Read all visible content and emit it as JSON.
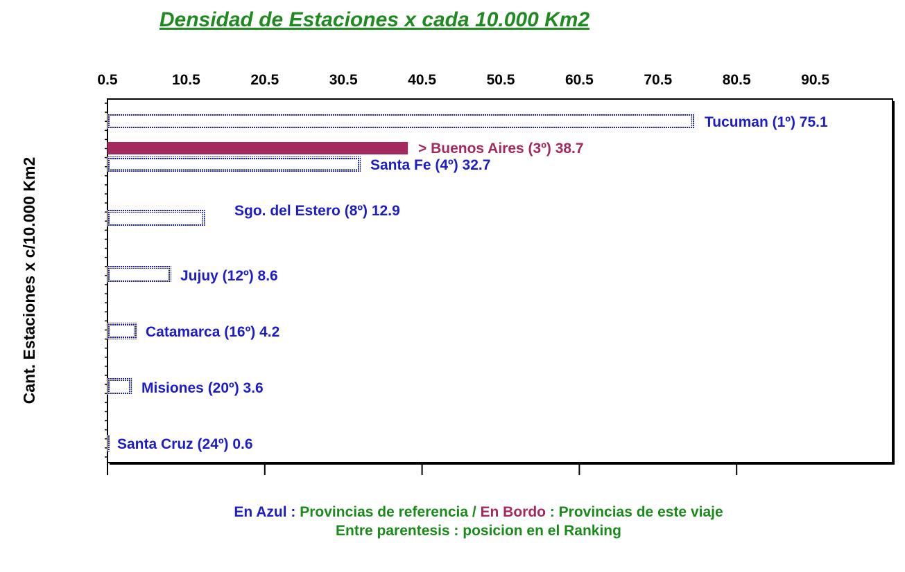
{
  "chart_data": {
    "type": "bar",
    "orientation": "horizontal",
    "title": "Densidad de Estaciones x cada 10.000 Km2",
    "ylabel": "Cant. Estaciones x c/10.000 Km2",
    "xlabel": "",
    "x_ticks": [
      "0.5",
      "10.5",
      "20.5",
      "30.5",
      "40.5",
      "50.5",
      "60.5",
      "70.5",
      "80.5",
      "90.5"
    ],
    "xlim": [
      0.5,
      100.5
    ],
    "grid": false,
    "legend": "none",
    "series": [
      {
        "category": "Tucuman",
        "label": "Tucuman (1º) 75.1",
        "value": 75.1,
        "style": "reference"
      },
      {
        "category": "Buenos Aires",
        "label": "> Buenos Aires (3º) 38.7",
        "value": 38.7,
        "style": "trip"
      },
      {
        "category": "Santa Fe",
        "label": "Santa Fe (4º) 32.7",
        "value": 32.7,
        "style": "reference"
      },
      {
        "category": "Sgo. del Estero",
        "label": "Sgo. del Estero (8º) 12.9",
        "value": 12.9,
        "style": "reference"
      },
      {
        "category": "Jujuy",
        "label": "Jujuy (12º) 8.6",
        "value": 8.6,
        "style": "reference"
      },
      {
        "category": "Catamarca",
        "label": "Catamarca (16º) 4.2",
        "value": 4.2,
        "style": "reference"
      },
      {
        "category": "Misiones",
        "label": "Misiones (20º) 3.6",
        "value": 3.6,
        "style": "reference"
      },
      {
        "category": "Santa Cruz",
        "label": "Santa Cruz (24º) 0.6",
        "value": 0.6,
        "style": "reference"
      }
    ]
  },
  "colors": {
    "reference": "#1c1cc8",
    "trip": "#a3295e",
    "title": "#1f8a1f",
    "footer_green": "#1a8a1a",
    "axis": "#000000"
  },
  "footer": {
    "line1": [
      {
        "text": "En Azul : ",
        "color": "reference"
      },
      {
        "text": "Provincias de referencia / ",
        "color": "footer_green"
      },
      {
        "text": "En Bordo",
        "color": "trip"
      },
      {
        "text": " : Provincias de este viaje",
        "color": "footer_green"
      }
    ],
    "line2": "Entre parentesis : posicion en el Ranking"
  }
}
